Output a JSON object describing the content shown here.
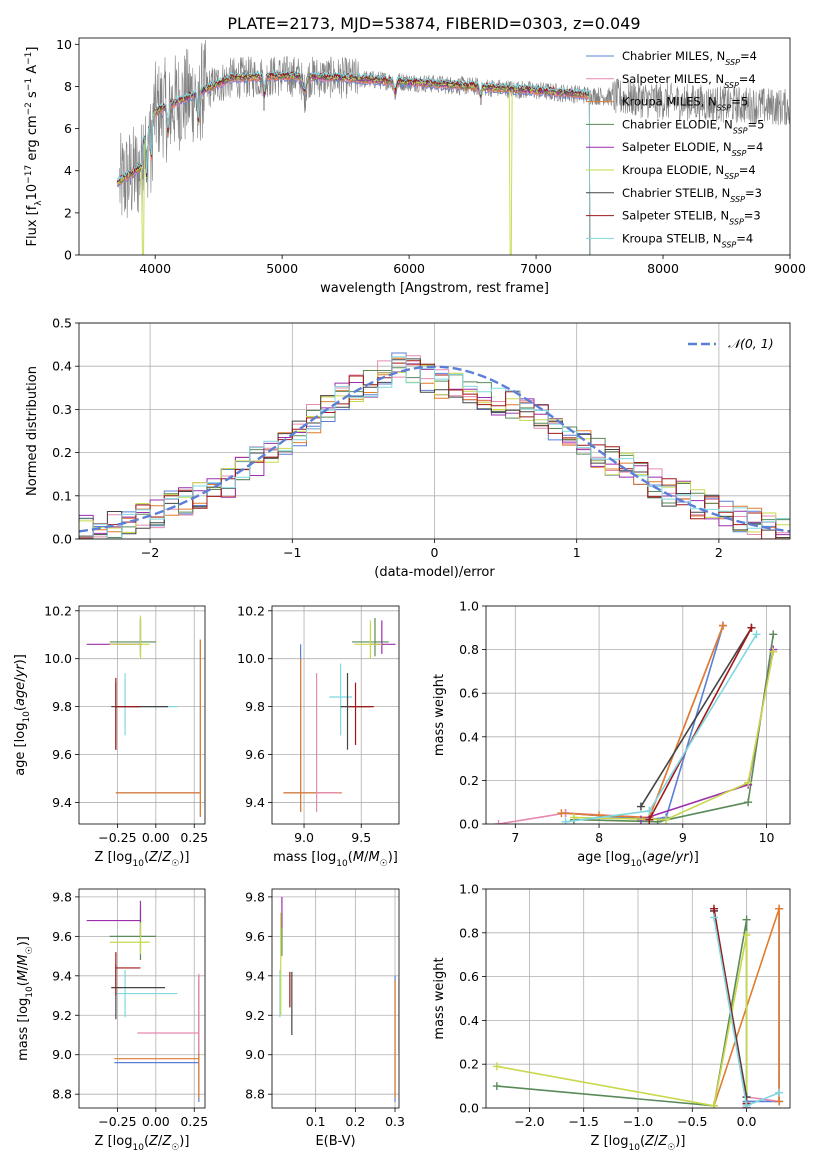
{
  "figure_title": "PLATE=2173, MJD=53874, FIBERID=0303, z=0.049",
  "models": [
    {
      "name": "Chabrier MILES, N",
      "sub": "SSP",
      "tail": "=4",
      "color": "#5b7fd6"
    },
    {
      "name": "Salpeter MILES, N",
      "sub": "SSP",
      "tail": "=4",
      "color": "#e68ab0"
    },
    {
      "name": "Kroupa MILES, N",
      "sub": "SSP",
      "tail": "=5",
      "color": "#e07c2e"
    },
    {
      "name": "Chabrier ELODIE, N",
      "sub": "SSP",
      "tail": "=5",
      "color": "#5a8a5a"
    },
    {
      "name": "Salpeter ELODIE, N",
      "sub": "SSP",
      "tail": "=4",
      "color": "#9b2fae"
    },
    {
      "name": "Kroupa ELODIE, N",
      "sub": "SSP",
      "tail": "=4",
      "color": "#c8d84a"
    },
    {
      "name": "Chabrier STELIB, N",
      "sub": "SSP",
      "tail": "=3",
      "color": "#444444"
    },
    {
      "name": "Salpeter STELIB, N",
      "sub": "SSP",
      "tail": "=3",
      "color": "#a01818"
    },
    {
      "name": "Kroupa STELIB, N",
      "sub": "SSP",
      "tail": "=4",
      "color": "#7fd8e0"
    }
  ],
  "chart_data": [
    {
      "id": "spectrum",
      "type": "line",
      "xlabel": "wavelength [Angstrom, rest frame]",
      "ylabel": "Flux [f_λ10^-17 erg cm^-2 s^-1 A^-1]",
      "xlim": [
        3400,
        9000
      ],
      "ylim": [
        0,
        10.3
      ],
      "xticks": [
        4000,
        5000,
        6000,
        7000,
        8000,
        9000
      ],
      "yticks": [
        0,
        2,
        4,
        6,
        8,
        10
      ],
      "data_color": "#808080",
      "data_x_range": [
        3720,
        9000
      ],
      "model_x_range": [
        3700,
        7420
      ],
      "continuum_knots": [
        [
          3700,
          4.5
        ],
        [
          3900,
          5.3
        ],
        [
          4000,
          6.8
        ],
        [
          4300,
          7.6
        ],
        [
          4600,
          8.4
        ],
        [
          5000,
          8.5
        ],
        [
          5500,
          8.4
        ],
        [
          6000,
          8.2
        ],
        [
          6500,
          8.0
        ],
        [
          7000,
          7.8
        ],
        [
          7400,
          7.6
        ],
        [
          8000,
          7.3
        ],
        [
          9000,
          7.0
        ]
      ],
      "legend_position": "upper right"
    },
    {
      "id": "residuals",
      "type": "histogram-step",
      "xlabel": "(data-model)/error",
      "ylabel": "Normed distribution",
      "xlim": [
        -2.5,
        2.5
      ],
      "ylim": [
        0,
        0.5
      ],
      "xticks": [
        -2,
        -1,
        0,
        1,
        2
      ],
      "yticks": [
        0.0,
        0.1,
        0.2,
        0.3,
        0.4,
        0.5
      ],
      "bin_edges": [
        -2.5,
        2.5
      ],
      "n_bins": 50,
      "hist_base": [
        0.02,
        0.02,
        0.03,
        0.04,
        0.05,
        0.06,
        0.08,
        0.09,
        0.1,
        0.12,
        0.13,
        0.16,
        0.18,
        0.2,
        0.22,
        0.25,
        0.28,
        0.3,
        0.33,
        0.35,
        0.36,
        0.38,
        0.4,
        0.39,
        0.37,
        0.36,
        0.35,
        0.34,
        0.33,
        0.32,
        0.31,
        0.3,
        0.28,
        0.26,
        0.24,
        0.22,
        0.2,
        0.18,
        0.17,
        0.15,
        0.13,
        0.11,
        0.1,
        0.08,
        0.07,
        0.06,
        0.05,
        0.04,
        0.03,
        0.02
      ],
      "curve": {
        "label": "𝒩(0, 1)",
        "color": "#5b7fd6",
        "mean": 0,
        "sigma": 1
      },
      "legend_position": "upper right"
    },
    {
      "id": "age-vs-Z",
      "type": "errorbar",
      "xlabel": "Z [log10(Z/Z☉)]",
      "ylabel": "age [log10(age/yr)]",
      "xlim": [
        -0.5,
        0.32
      ],
      "ylim": [
        9.31,
        10.22
      ],
      "xticks": [
        -0.25,
        0.0,
        0.25
      ],
      "yticks": [
        9.4,
        9.6,
        9.8,
        10.0,
        10.2
      ],
      "points": [
        {
          "x": 0.29,
          "y": 9.44,
          "xlo": 0.55,
          "xhi": 0.0,
          "ylo": 0.1,
          "yhi": 0.64,
          "m": 0
        },
        {
          "x": 0.29,
          "y": 9.44,
          "xlo": 0.55,
          "xhi": 0.0,
          "ylo": 0.1,
          "yhi": 0.64,
          "m": 2
        },
        {
          "x": -0.2,
          "y": 9.8,
          "xlo": 0.06,
          "xhi": 0.34,
          "ylo": 0.12,
          "yhi": 0.14,
          "m": 8
        },
        {
          "x": -0.26,
          "y": 9.8,
          "xlo": 0.03,
          "xhi": 0.34,
          "ylo": 0.18,
          "yhi": 0.1,
          "m": 6
        },
        {
          "x": -0.26,
          "y": 9.8,
          "xlo": 0.0,
          "xhi": 0.16,
          "ylo": 0.18,
          "yhi": 0.12,
          "m": 7
        },
        {
          "x": -0.1,
          "y": 10.07,
          "xlo": 0.2,
          "xhi": 0.1,
          "ylo": 0.06,
          "yhi": 0.1,
          "m": 3
        },
        {
          "x": -0.1,
          "y": 10.06,
          "xlo": 0.35,
          "xhi": 0.0,
          "ylo": 0.02,
          "yhi": 0.1,
          "m": 4
        },
        {
          "x": -0.1,
          "y": 10.06,
          "xlo": 0.2,
          "xhi": 0.06,
          "ylo": 0.06,
          "yhi": 0.12,
          "m": 5
        }
      ]
    },
    {
      "id": "age-vs-mass",
      "type": "errorbar",
      "xlabel": "mass [log10(M/M☉)]",
      "ylabel": "",
      "xlim": [
        8.72,
        9.83
      ],
      "ylim": [
        9.31,
        10.22
      ],
      "xticks": [
        9.0,
        9.5
      ],
      "yticks": [
        9.4,
        9.6,
        9.8,
        10.0,
        10.2
      ],
      "points": [
        {
          "x": 8.97,
          "y": 9.44,
          "xlo": 0.15,
          "xhi": 0.32,
          "ylo": 0.08,
          "yhi": 0.62,
          "m": 0
        },
        {
          "x": 8.97,
          "y": 9.44,
          "xlo": 0.15,
          "xhi": 0.36,
          "ylo": 0.08,
          "yhi": 0.56,
          "m": 2
        },
        {
          "x": 9.11,
          "y": 9.44,
          "xlo": 0.0,
          "xhi": 0.2,
          "ylo": 0.08,
          "yhi": 0.5,
          "m": 1
        },
        {
          "x": 9.32,
          "y": 9.84,
          "xlo": 0.1,
          "xhi": 0.1,
          "ylo": 0.16,
          "yhi": 0.14,
          "m": 8
        },
        {
          "x": 9.38,
          "y": 9.8,
          "xlo": 0.06,
          "xhi": 0.2,
          "ylo": 0.18,
          "yhi": 0.14,
          "m": 6
        },
        {
          "x": 9.45,
          "y": 9.8,
          "xlo": 0.06,
          "xhi": 0.16,
          "ylo": 0.16,
          "yhi": 0.1,
          "m": 7
        },
        {
          "x": 9.62,
          "y": 10.07,
          "xlo": 0.2,
          "xhi": 0.12,
          "ylo": 0.06,
          "yhi": 0.1,
          "m": 3
        },
        {
          "x": 9.68,
          "y": 10.06,
          "xlo": 0.1,
          "xhi": 0.12,
          "ylo": 0.04,
          "yhi": 0.1,
          "m": 4
        },
        {
          "x": 9.58,
          "y": 10.06,
          "xlo": 0.14,
          "xhi": 0.1,
          "ylo": 0.06,
          "yhi": 0.1,
          "m": 5
        }
      ]
    },
    {
      "id": "massweight-vs-age",
      "type": "line",
      "xlabel": "age [log10(age/yr)]",
      "ylabel": "mass weight",
      "xlim": [
        6.65,
        10.28
      ],
      "ylim": [
        0,
        1.0
      ],
      "xticks": [
        7,
        8,
        9,
        10
      ],
      "yticks": [
        0.0,
        0.2,
        0.4,
        0.6,
        0.8,
        1.0
      ],
      "series": [
        {
          "m": 0,
          "x": [
            7.6,
            8.6,
            8.8,
            9.48
          ],
          "y": [
            0.05,
            0.02,
            0.03,
            0.91
          ]
        },
        {
          "m": 1,
          "x": [
            6.8,
            7.6,
            8.6,
            9.48
          ],
          "y": [
            0.0,
            0.05,
            0.03,
            0.91
          ]
        },
        {
          "m": 2,
          "x": [
            7.55,
            8.0,
            8.6,
            9.48
          ],
          "y": [
            0.05,
            0.04,
            0.03,
            0.91
          ]
        },
        {
          "m": 3,
          "x": [
            7.7,
            8.7,
            9.78,
            10.08
          ],
          "y": [
            0.02,
            0.01,
            0.1,
            0.87
          ]
        },
        {
          "m": 4,
          "x": [
            8.5,
            9.78,
            10.08
          ],
          "y": [
            0.02,
            0.18,
            0.8
          ]
        },
        {
          "m": 5,
          "x": [
            7.7,
            8.8,
            9.78,
            10.08
          ],
          "y": [
            0.03,
            0.02,
            0.19,
            0.79
          ]
        },
        {
          "m": 6,
          "x": [
            8.5,
            9.82
          ],
          "y": [
            0.08,
            0.9
          ]
        },
        {
          "m": 7,
          "x": [
            8.6,
            9.82
          ],
          "y": [
            0.02,
            0.9
          ]
        },
        {
          "m": 8,
          "x": [
            7.6,
            8.6,
            9.88
          ],
          "y": [
            0.01,
            0.06,
            0.87
          ]
        }
      ]
    },
    {
      "id": "mass-vs-Z",
      "type": "errorbar",
      "xlabel": "Z [log10(Z/Z☉)]",
      "ylabel": "mass [log10(M/M☉)]",
      "xlim": [
        -0.5,
        0.32
      ],
      "ylim": [
        8.73,
        9.84
      ],
      "xticks": [
        -0.25,
        0.0,
        0.25
      ],
      "yticks": [
        8.8,
        9.0,
        9.2,
        9.4,
        9.6,
        9.8
      ],
      "points": [
        {
          "x": 0.28,
          "y": 8.96,
          "xlo": 0.55,
          "xhi": 0.0,
          "ylo": 0.2,
          "yhi": 0.44,
          "m": 0
        },
        {
          "x": 0.28,
          "y": 8.98,
          "xlo": 0.55,
          "xhi": 0.0,
          "ylo": 0.2,
          "yhi": 0.4,
          "m": 2
        },
        {
          "x": 0.28,
          "y": 9.11,
          "xlo": 0.4,
          "xhi": 0.0,
          "ylo": 0.1,
          "yhi": 0.3,
          "m": 1
        },
        {
          "x": -0.2,
          "y": 9.31,
          "xlo": 0.06,
          "xhi": 0.34,
          "ylo": 0.12,
          "yhi": 0.12,
          "m": 8
        },
        {
          "x": -0.26,
          "y": 9.34,
          "xlo": 0.03,
          "xhi": 0.32,
          "ylo": 0.16,
          "yhi": 0.12,
          "m": 6
        },
        {
          "x": -0.26,
          "y": 9.44,
          "xlo": 0.0,
          "xhi": 0.16,
          "ylo": 0.14,
          "yhi": 0.08,
          "m": 7
        },
        {
          "x": -0.1,
          "y": 9.6,
          "xlo": 0.2,
          "xhi": 0.1,
          "ylo": 0.12,
          "yhi": 0.14,
          "m": 3
        },
        {
          "x": -0.1,
          "y": 9.68,
          "xlo": 0.35,
          "xhi": 0.0,
          "ylo": 0.08,
          "yhi": 0.1,
          "m": 4
        },
        {
          "x": -0.1,
          "y": 9.57,
          "xlo": 0.2,
          "xhi": 0.06,
          "ylo": 0.06,
          "yhi": 0.1,
          "m": 5
        }
      ]
    },
    {
      "id": "mass-vs-EBV",
      "type": "errorbar",
      "xlabel": "E(B-V)",
      "ylabel": "",
      "xlim": [
        -0.01,
        0.31
      ],
      "ylim": [
        8.73,
        9.84
      ],
      "xticks": [
        0.1,
        0.2,
        0.3
      ],
      "yticks": [
        8.8,
        9.0,
        9.2,
        9.4,
        9.6,
        9.8
      ],
      "points": [
        {
          "x": 0.3,
          "y": 8.96,
          "xlo": 0,
          "xhi": 0,
          "ylo": 0.2,
          "yhi": 0.44,
          "m": 0
        },
        {
          "x": 0.3,
          "y": 8.98,
          "xlo": 0,
          "xhi": 0,
          "ylo": 0.2,
          "yhi": 0.4,
          "m": 2
        },
        {
          "x": 0.31,
          "y": 9.11,
          "xlo": 0,
          "xhi": 0,
          "ylo": 0.1,
          "yhi": 0.28,
          "m": 1
        },
        {
          "x": 0.01,
          "y": 9.31,
          "xlo": 0,
          "xhi": 0,
          "ylo": 0.12,
          "yhi": 0.12,
          "m": 8
        },
        {
          "x": 0.04,
          "y": 9.3,
          "xlo": 0,
          "xhi": 0,
          "ylo": 0.2,
          "yhi": 0.12,
          "m": 6
        },
        {
          "x": 0.035,
          "y": 9.34,
          "xlo": 0,
          "xhi": 0,
          "ylo": 0.1,
          "yhi": 0.08,
          "m": 7
        },
        {
          "x": 0.015,
          "y": 9.6,
          "xlo": 0,
          "xhi": 0,
          "ylo": 0.1,
          "yhi": 0.12,
          "m": 3
        },
        {
          "x": 0.015,
          "y": 9.7,
          "xlo": 0,
          "xhi": 0,
          "ylo": 0.06,
          "yhi": 0.1,
          "m": 4
        },
        {
          "x": 0.012,
          "y": 9.5,
          "xlo": 0,
          "xhi": 0,
          "ylo": 0.3,
          "yhi": 0.22,
          "m": 5
        }
      ]
    },
    {
      "id": "massweight-vs-Z",
      "type": "line",
      "xlabel": "Z [log10(Z/Z☉)]",
      "ylabel": "mass weight",
      "xlim": [
        -2.4,
        0.4
      ],
      "ylim": [
        0,
        1.0
      ],
      "xticks": [
        -2.0,
        -1.5,
        -1.0,
        -0.5,
        0.0
      ],
      "yticks": [
        0.0,
        0.2,
        0.4,
        0.6,
        0.8,
        1.0
      ],
      "series": [
        {
          "m": 0,
          "x": [
            0.0,
            0.3,
            0.3
          ],
          "y": [
            0.03,
            0.03,
            0.91
          ]
        },
        {
          "m": 1,
          "x": [
            0.0,
            0.3,
            0.3
          ],
          "y": [
            0.05,
            0.03,
            0.91
          ]
        },
        {
          "m": 2,
          "x": [
            -0.3,
            0.3,
            0.3
          ],
          "y": [
            0.01,
            0.91,
            0.03
          ]
        },
        {
          "m": 3,
          "x": [
            -2.3,
            -0.3,
            0.0,
            0.0
          ],
          "y": [
            0.1,
            0.01,
            0.86,
            0.0
          ]
        },
        {
          "m": 4,
          "x": [
            -0.3,
            0.0,
            0.0
          ],
          "y": [
            0.9,
            0.02,
            0.0
          ]
        },
        {
          "m": 5,
          "x": [
            -2.3,
            -0.3,
            0.0,
            0.0
          ],
          "y": [
            0.19,
            0.01,
            0.79,
            0.02
          ]
        },
        {
          "m": 6,
          "x": [
            -0.3,
            0.0
          ],
          "y": [
            0.9,
            0.05
          ]
        },
        {
          "m": 7,
          "x": [
            -0.3,
            0.0
          ],
          "y": [
            0.91,
            0.02
          ]
        },
        {
          "m": 8,
          "x": [
            -0.3,
            0.0,
            0.3
          ],
          "y": [
            0.87,
            0.01,
            0.07
          ]
        }
      ]
    }
  ]
}
